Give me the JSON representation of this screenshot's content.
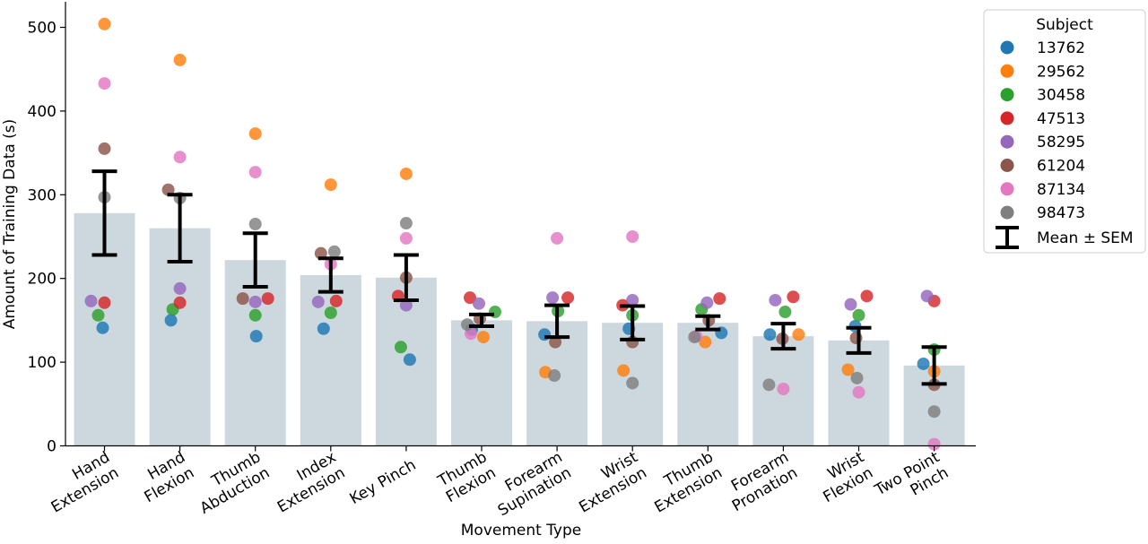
{
  "chart_data": {
    "type": "bar",
    "xlabel": "Movement Type",
    "ylabel": "Amount of Training Data (s)",
    "ylim": [
      0,
      530
    ],
    "yticks": [
      0,
      100,
      200,
      300,
      400,
      500
    ],
    "grid": false,
    "categories": [
      [
        "Hand",
        "Extension"
      ],
      [
        "Hand",
        "Flexion"
      ],
      [
        "Thumb",
        "Abduction"
      ],
      [
        "Index",
        "Extension"
      ],
      [
        "Key Pinch"
      ],
      [
        "Thumb",
        "Flexion"
      ],
      [
        "Forearm",
        "Supination"
      ],
      [
        "Wrist",
        "Extension"
      ],
      [
        "Thumb",
        "Extension"
      ],
      [
        "Forearm",
        "Pronation"
      ],
      [
        "Wrist",
        "Flexion"
      ],
      [
        "Two Point",
        "Pinch"
      ]
    ],
    "bar_color": "#ccd8de",
    "means": [
      278,
      260,
      222,
      204,
      201,
      150,
      149,
      147,
      147,
      131,
      126,
      96
    ],
    "sem": [
      50,
      40,
      32,
      20,
      27,
      7,
      19,
      20,
      8,
      15,
      15,
      22
    ],
    "legend": {
      "title": "Subject",
      "position": "top-right",
      "sem_label": "Mean ± SEM"
    },
    "series": [
      {
        "name": "13762",
        "color": "#1f77b4",
        "values": [
          141,
          150,
          131,
          140,
          103,
          139,
          133,
          140,
          135,
          133,
          143,
          98
        ]
      },
      {
        "name": "29562",
        "color": "#ff7f0e",
        "values": [
          504,
          461,
          373,
          312,
          325,
          130,
          88,
          90,
          124,
          133,
          91,
          89
        ]
      },
      {
        "name": "30458",
        "color": "#2ca02c",
        "values": [
          156,
          163,
          156,
          159,
          118,
          160,
          161,
          156,
          163,
          160,
          156,
          115
        ]
      },
      {
        "name": "47513",
        "color": "#d62728",
        "values": [
          171,
          171,
          176,
          173,
          179,
          177,
          177,
          168,
          176,
          178,
          179,
          173
        ]
      },
      {
        "name": "58295",
        "color": "#9467bd",
        "values": [
          173,
          188,
          172,
          172,
          168,
          170,
          177,
          174,
          171,
          174,
          169,
          179
        ]
      },
      {
        "name": "61204",
        "color": "#8c564b",
        "values": [
          355,
          306,
          176,
          230,
          201,
          152,
          124,
          124,
          150,
          128,
          129,
          73
        ]
      },
      {
        "name": "87134",
        "color": "#e377c2",
        "values": [
          433,
          345,
          327,
          217,
          248,
          134,
          248,
          250,
          131,
          68,
          64,
          2
        ]
      },
      {
        "name": "98473",
        "color": "#7f7f7f",
        "values": [
          297,
          296,
          265,
          232,
          266,
          145,
          84,
          75,
          130,
          73,
          81,
          41
        ]
      }
    ]
  }
}
